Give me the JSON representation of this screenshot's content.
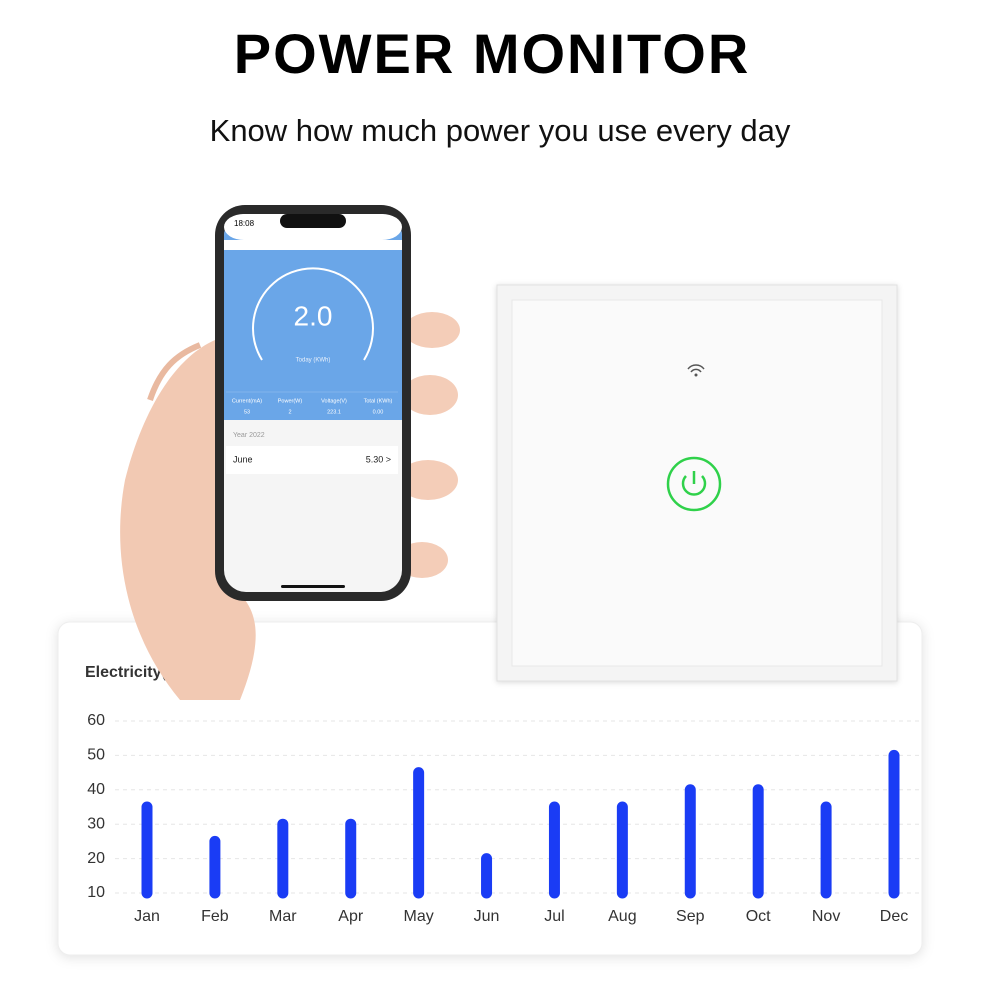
{
  "header": {
    "title": "POWER MONITOR",
    "subtitle": "Know how much power you use every day"
  },
  "phone": {
    "time": "18:08",
    "reading": "2.0",
    "reading_label": "Today (KWh)",
    "stats": [
      {
        "label": "Current(mA)",
        "value": "53"
      },
      {
        "label": "Power(W)",
        "value": "2"
      },
      {
        "label": "Voltage(V)",
        "value": "223.1"
      },
      {
        "label": "Total (KWh)",
        "value": "0.00"
      }
    ],
    "year": "Year 2022",
    "month": "June",
    "month_value": "5.30 >"
  },
  "chart_data": {
    "type": "bar",
    "title": "Electricity(KWh)",
    "categories": [
      "Jan",
      "Feb",
      "Mar",
      "Apr",
      "May",
      "Jun",
      "Jul",
      "Aug",
      "Sep",
      "Oct",
      "Nov",
      "Dec"
    ],
    "values": [
      35,
      25,
      30,
      30,
      45,
      20,
      35,
      35,
      40,
      40,
      35,
      50
    ],
    "color": "#1a3cf5",
    "ylim": [
      10,
      60
    ],
    "yticks": [
      10,
      20,
      30,
      40,
      50,
      60
    ],
    "grid": true
  }
}
